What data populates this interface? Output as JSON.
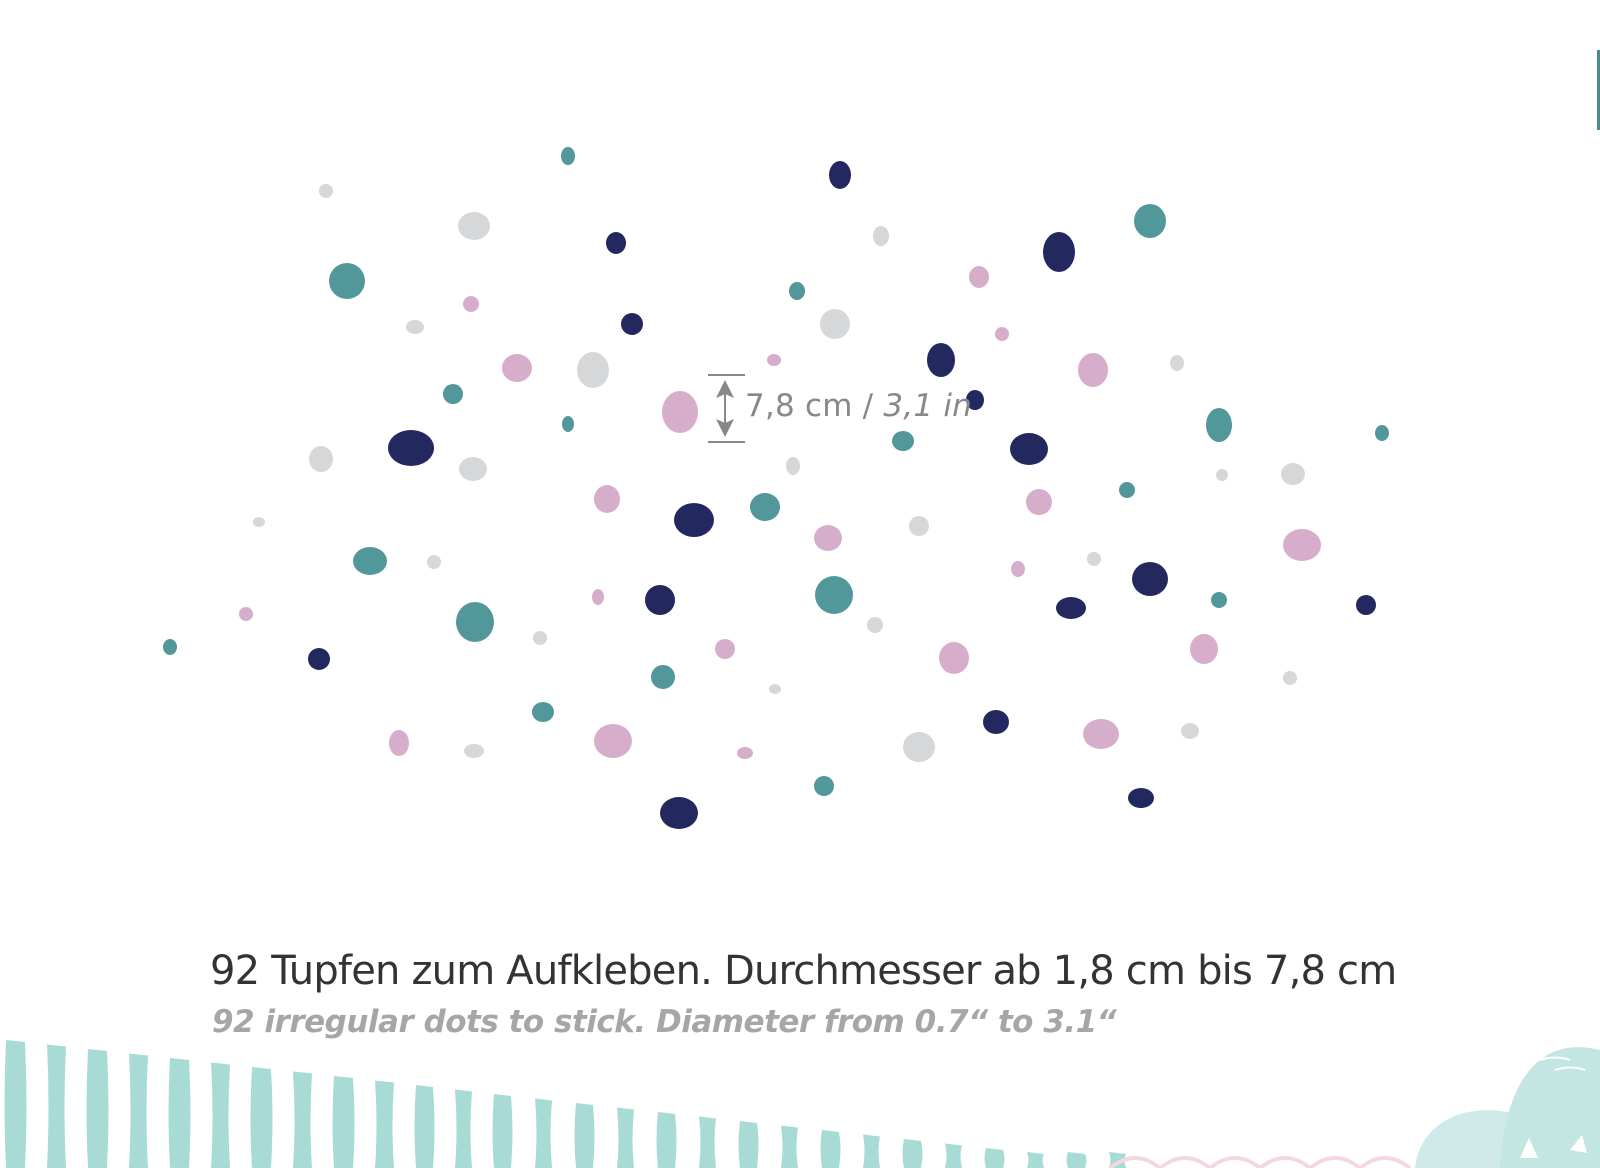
{
  "colors": {
    "navy": "#23295f",
    "teal": "#52979a",
    "pink": "#d6aecb",
    "grey": "#d6d7d9",
    "measure": "#888888",
    "stripe": "#9fd7d2"
  },
  "measure": {
    "metric": "7,8 cm /",
    "imperial": "3,1 in"
  },
  "caption": {
    "german": "92 Tupfen zum Aufkleben. Durchmesser ab 1,8 cm bis 7,8 cm",
    "english": "92 irregular dots to stick. Diameter from 0.7“ to 3.1“"
  }
}
